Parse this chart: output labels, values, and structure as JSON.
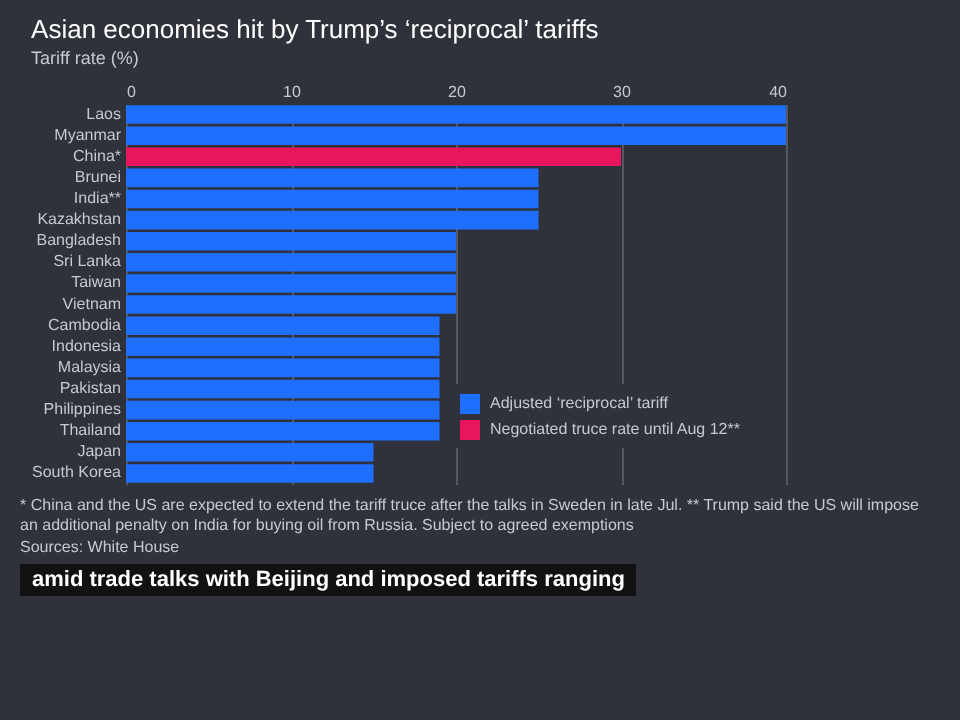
{
  "chart_data": {
    "type": "bar",
    "orientation": "horizontal",
    "title": "Asian economies hit by Trump’s ‘reciprocal’ tariffs",
    "subtitle": "Tariff rate (%)",
    "categories": [
      "Laos",
      "Myanmar",
      "China*",
      "Brunei",
      "India**",
      "Kazakhstan",
      "Bangladesh",
      "Sri Lanka",
      "Taiwan",
      "Vietnam",
      "Cambodia",
      "Indonesia",
      "Malaysia",
      "Pakistan",
      "Philippines",
      "Thailand",
      "Japan",
      "South Korea"
    ],
    "series": [
      {
        "name": "Adjusted ‘reciprocal’ tariff",
        "color": "#1f6fff",
        "values": [
          40,
          40,
          null,
          25,
          25,
          25,
          20,
          20,
          20,
          20,
          19,
          19,
          19,
          19,
          19,
          19,
          15,
          15
        ]
      },
      {
        "name": "Negotiated truce rate until Aug 12**",
        "color": "#e8175d",
        "values": [
          null,
          null,
          30,
          null,
          null,
          null,
          null,
          null,
          null,
          null,
          null,
          null,
          null,
          null,
          null,
          null,
          null,
          null
        ]
      }
    ],
    "xlim": [
      0,
      40
    ],
    "xticks": [
      0,
      10,
      20,
      30,
      40
    ],
    "grid": "x",
    "legend": "bottom right",
    "annotations": [
      "* China and the US are expected to extend the tariff truce after the talks in Sweden in late Jul. ** Trump said the US will impose an additional penalty on India for buying oil from Russia. Subject to agreed exemptions",
      "Sources: White House",
      "amid trade talks with Beijing and imposed tariffs ranging"
    ]
  }
}
